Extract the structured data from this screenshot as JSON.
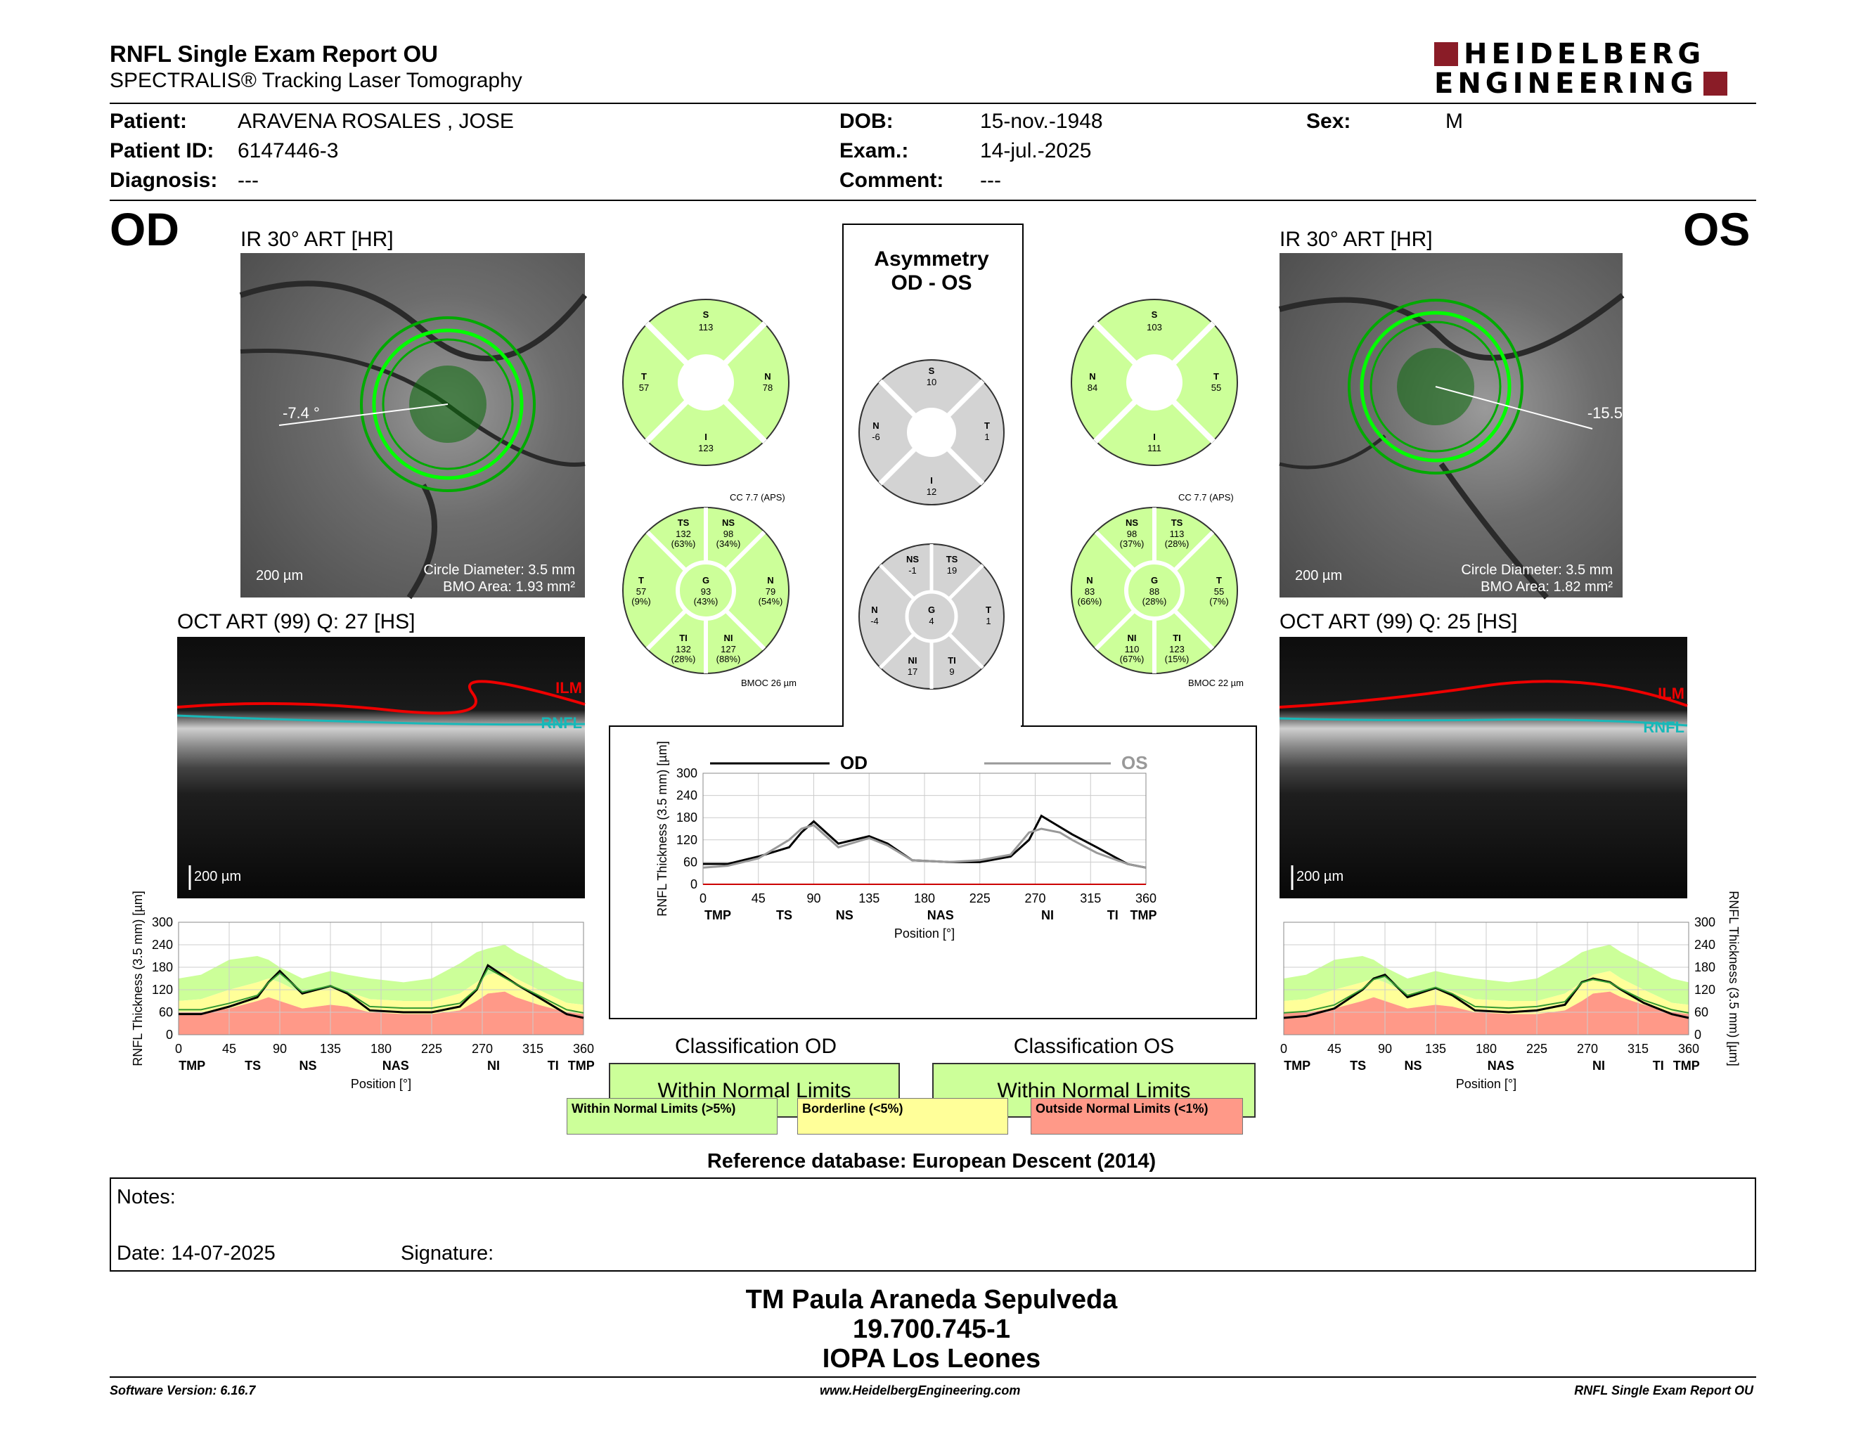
{
  "header": {
    "title": "RNFL Single Exam Report OU",
    "subtitle": "SPECTRALIS® Tracking Laser Tomography",
    "logo_line1": "HEIDELBERG",
    "logo_line2": "ENGINEERING"
  },
  "patient": {
    "patient_label": "Patient:",
    "patient_value": "ARAVENA ROSALES , JOSE",
    "id_label": "Patient ID:",
    "id_value": "6147446-3",
    "diag_label": "Diagnosis:",
    "diag_value": "---",
    "dob_label": "DOB:",
    "dob_value": "15-nov.-1948",
    "exam_label": "Exam.:",
    "exam_value": "14-jul.-2025",
    "comment_label": "Comment:",
    "comment_value": "---",
    "sex_label": "Sex:",
    "sex_value": "M"
  },
  "od": {
    "eye": "OD",
    "ir_title": "IR 30° ART [HR]",
    "angle": "-7.4 °",
    "scale": "200 µm",
    "circle": "Circle Diameter: 3.5 mm",
    "bmo": "BMO Area: 1.93 mm²",
    "oct_title": "OCT ART (99) Q: 27 [HS]",
    "ilm": "ILM",
    "rnfl": "RNFL",
    "oct_scale": "200 µm"
  },
  "os": {
    "eye": "OS",
    "ir_title": "IR 30° ART [HR]",
    "angle": "-15.5",
    "scale": "200 µm",
    "circle": "Circle Diameter: 3.5 mm",
    "bmo": "BMO Area: 1.82 mm²",
    "oct_title": "OCT ART (99) Q: 25 [HS]",
    "ilm": "ILM",
    "rnfl": "RNFL",
    "oct_scale": "200 µm"
  },
  "asym": {
    "title1": "Asymmetry",
    "title2": "OD - OS"
  },
  "wheels": {
    "od_quad": {
      "S": "113",
      "T": "57",
      "N": "78",
      "I": "123"
    },
    "os_quad": {
      "S": "103",
      "N": "84",
      "T": "55",
      "I": "111"
    },
    "asym_quad": {
      "S": "10",
      "N": "-6",
      "T": "1",
      "I": "12"
    },
    "od_sect": {
      "cc": "CC 7.7 (APS)",
      "bmoc": "BMOC 26 µm",
      "TS": [
        "132",
        "(63%)"
      ],
      "NS": [
        "98",
        "(34%)"
      ],
      "T": [
        "57",
        "(9%)"
      ],
      "G": [
        "93",
        "(43%)"
      ],
      "N": [
        "79",
        "(54%)"
      ],
      "TI": [
        "132",
        "(28%)"
      ],
      "NI": [
        "127",
        "(88%)"
      ]
    },
    "os_sect": {
      "cc": "CC 7.7 (APS)",
      "bmoc": "BMOC 22 µm",
      "NS": [
        "98",
        "(37%)"
      ],
      "TS": [
        "113",
        "(28%)"
      ],
      "N": [
        "83",
        "(66%)"
      ],
      "G": [
        "88",
        "(28%)"
      ],
      "T": [
        "55",
        "(7%)"
      ],
      "NI": [
        "110",
        "(67%)"
      ],
      "TI": [
        "123",
        "(15%)"
      ]
    },
    "asym_sect": {
      "NS": "-1",
      "TS": "19",
      "N": "-4",
      "G": "4",
      "T": "1",
      "NI": "17",
      "TI": "9"
    }
  },
  "colors": {
    "normal": "#ccff99",
    "borderline": "#ffff99",
    "outside": "#ff9988",
    "asym_grey": "#d3d3d3",
    "od_line": "#000000",
    "os_line": "#999999"
  },
  "center_chart": {
    "legend_od": "OD",
    "legend_os": "OS"
  },
  "classification": {
    "od_title": "Classification OD",
    "od_value": "Within Normal Limits",
    "os_title": "Classification OS",
    "os_value": "Within Normal Limits",
    "legend_normal": "Within Normal Limits (>5%)",
    "legend_border": "Borderline (<5%)",
    "legend_outside": "Outside Normal Limits (<1%)"
  },
  "reference": "Reference database: European Descent (2014)",
  "notes": {
    "label": "Notes:",
    "date": "Date: 14-07-2025",
    "signature": "Signature:"
  },
  "footer": {
    "name": "TM Paula Araneda Sepulveda",
    "rut": "19.700.745-1",
    "place": "IOPA Los Leones",
    "software": "Software Version: 6.16.7",
    "web": "www.HeidelbergEngineering.com",
    "report": "RNFL Single Exam Report OU"
  },
  "chart_data": [
    {
      "type": "line",
      "title": "",
      "xlabel": "Position [°]",
      "ylabel": "RNFL Thickness (3.5 mm) [µm]",
      "xlim": [
        0,
        360
      ],
      "ylim": [
        0,
        300
      ],
      "xticks": [
        "0",
        "45",
        "90",
        "135",
        "180",
        "225",
        "270",
        "315",
        "360"
      ],
      "yticks": [
        "0",
        "60",
        "120",
        "180",
        "240",
        "300"
      ],
      "sector_labels": [
        "TMP",
        "TS",
        "NS",
        "NAS",
        "NI",
        "TI",
        "TMP"
      ],
      "x": [
        0,
        20,
        45,
        70,
        80,
        90,
        110,
        135,
        150,
        170,
        200,
        225,
        250,
        265,
        275,
        290,
        300,
        320,
        345,
        360
      ],
      "series": [
        {
          "name": "OD",
          "values": [
            55,
            55,
            75,
            100,
            140,
            170,
            110,
            130,
            110,
            65,
            60,
            60,
            75,
            120,
            185,
            155,
            135,
            100,
            55,
            45
          ]
        },
        {
          "name": "OS",
          "values": [
            45,
            50,
            70,
            120,
            150,
            160,
            100,
            125,
            105,
            65,
            60,
            65,
            80,
            140,
            150,
            140,
            120,
            85,
            55,
            45
          ]
        }
      ]
    },
    {
      "type": "line",
      "title": "",
      "xlabel": "Position [°]",
      "ylabel": "RNFL Thickness (3.5 mm) [µm]",
      "xlim": [
        0,
        360
      ],
      "ylim": [
        0,
        300
      ],
      "xticks": [
        "0",
        "45",
        "90",
        "135",
        "180",
        "225",
        "270",
        "315",
        "360"
      ],
      "yticks": [
        "0",
        "60",
        "120",
        "180",
        "240",
        "300"
      ],
      "sector_labels": [
        "TMP",
        "TS",
        "NS",
        "NAS",
        "NI",
        "TI",
        "TMP"
      ],
      "x": [
        0,
        20,
        45,
        70,
        80,
        90,
        110,
        135,
        150,
        170,
        200,
        225,
        250,
        265,
        275,
        290,
        300,
        320,
        345,
        360
      ],
      "series": [
        {
          "name": "OD",
          "values": [
            55,
            55,
            75,
            100,
            140,
            170,
            110,
            130,
            110,
            65,
            60,
            60,
            75,
            120,
            185,
            155,
            135,
            100,
            55,
            45
          ]
        }
      ]
    },
    {
      "type": "line",
      "title": "",
      "xlabel": "Position [°]",
      "ylabel": "RNFL Thickness (3.5 mm) [µm]",
      "xlim": [
        0,
        360
      ],
      "ylim": [
        0,
        300
      ],
      "xticks": [
        "0",
        "45",
        "90",
        "135",
        "180",
        "225",
        "270",
        "315",
        "360"
      ],
      "yticks": [
        "0",
        "60",
        "120",
        "180",
        "240",
        "300"
      ],
      "sector_labels": [
        "TMP",
        "TS",
        "NS",
        "NAS",
        "NI",
        "TI",
        "TMP"
      ],
      "x": [
        0,
        20,
        45,
        70,
        80,
        90,
        110,
        135,
        150,
        170,
        200,
        225,
        250,
        265,
        275,
        290,
        300,
        320,
        345,
        360
      ],
      "series": [
        {
          "name": "OS",
          "values": [
            45,
            50,
            70,
            120,
            150,
            160,
            100,
            125,
            105,
            65,
            60,
            65,
            80,
            140,
            150,
            140,
            120,
            85,
            55,
            45
          ]
        }
      ]
    }
  ]
}
